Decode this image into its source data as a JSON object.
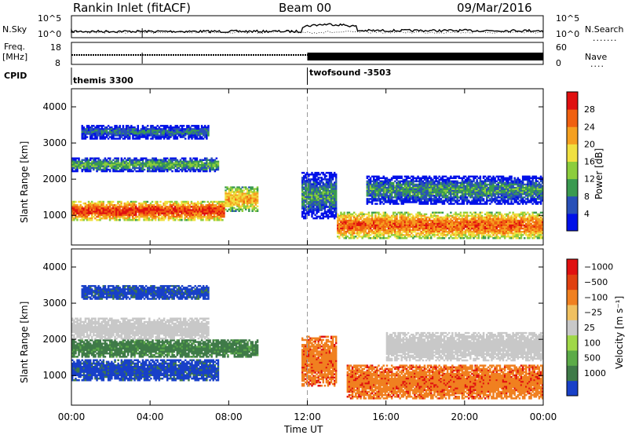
{
  "header": {
    "station": "Rankin Inlet (fitACF)",
    "beam": "Beam 00",
    "date": "09/Mar/2016"
  },
  "top_panels": {
    "nsky_label": "N.Sky",
    "nsky_ticks": [
      "10^5",
      "10^0"
    ],
    "nsearch_label": "N.Search",
    "nsearch_ticks": [
      "10^5",
      "10^0"
    ],
    "freq_label": "Freq.",
    "freq_unit": "[MHz]",
    "freq_ticks": [
      "18",
      "8"
    ],
    "nave_label": "Nave",
    "nave_ticks": [
      "60",
      "0"
    ],
    "cpid_label": "CPID",
    "cpid_segments": [
      {
        "label": "themis 3300",
        "start_hour": 0
      },
      {
        "label": "twofsound -3503",
        "start_hour": 12
      }
    ]
  },
  "chart_data": [
    {
      "type": "heatmap",
      "title": "",
      "xlabel": "",
      "ylabel": "Slant Range [km]",
      "x_ticks": [
        "00:00",
        "04:00",
        "08:00",
        "12:00",
        "16:00",
        "20:00",
        "00:00"
      ],
      "xlim_hours": [
        0,
        24
      ],
      "y_ticks": [
        "1000",
        "2000",
        "3000",
        "4000"
      ],
      "ylim": [
        180,
        4500
      ],
      "colorbar": {
        "label": "Power [dB]",
        "ticks": [
          "4",
          "8",
          "12",
          "16",
          "20",
          "24",
          "28"
        ],
        "colors": [
          "#0010e8",
          "#2850b8",
          "#3a9a50",
          "#8ccd3c",
          "#f0e040",
          "#f5a020",
          "#f06010",
          "#e01010"
        ]
      },
      "regions": [
        {
          "t0": 0,
          "t1": 7.8,
          "r0": 850,
          "r1": 1400,
          "level": 28
        },
        {
          "t0": 7.8,
          "t1": 9.5,
          "r0": 1100,
          "r1": 1800,
          "level": 22
        },
        {
          "t0": 0,
          "t1": 7.5,
          "r0": 2200,
          "r1": 2600,
          "level": 12
        },
        {
          "t0": 0.5,
          "t1": 7,
          "r0": 3100,
          "r1": 3500,
          "level": 8
        },
        {
          "t0": 11.7,
          "t1": 13.5,
          "r0": 900,
          "r1": 2200,
          "level": 10
        },
        {
          "t0": 13.5,
          "t1": 24,
          "r0": 350,
          "r1": 1100,
          "level": 26
        },
        {
          "t0": 15,
          "t1": 24,
          "r0": 1300,
          "r1": 2100,
          "level": 10
        }
      ]
    },
    {
      "type": "heatmap",
      "title": "",
      "xlabel": "Time UT",
      "ylabel": "Slant Range [km]",
      "x_ticks": [
        "00:00",
        "04:00",
        "08:00",
        "12:00",
        "16:00",
        "20:00",
        "00:00"
      ],
      "xlim_hours": [
        0,
        24
      ],
      "y_ticks": [
        "1000",
        "2000",
        "3000",
        "4000"
      ],
      "ylim": [
        180,
        4500
      ],
      "colorbar": {
        "label": "Velocity [m s⁻¹]",
        "ticks": [
          "1000",
          "500",
          "100",
          "25",
          "−25",
          "−100",
          "−500",
          "−1000"
        ],
        "colors": [
          "#1840c8",
          "#3f7a48",
          "#5cab48",
          "#a0d848",
          "#c8c8c8",
          "#f0c060",
          "#f08020",
          "#e04010",
          "#e01010"
        ]
      },
      "regions": [
        {
          "t0": 0,
          "t1": 7.5,
          "r0": 850,
          "r1": 1450,
          "level": 700
        },
        {
          "t0": 0,
          "t1": 9.5,
          "r0": 1500,
          "r1": 2000,
          "level": 150
        },
        {
          "t0": 0,
          "t1": 7,
          "r0": 2000,
          "r1": 2600,
          "level": 0
        },
        {
          "t0": 0.5,
          "t1": 7,
          "r0": 3100,
          "r1": 3500,
          "level": 700
        },
        {
          "t0": 11.7,
          "t1": 13.5,
          "r0": 700,
          "r1": 2100,
          "level": -300
        },
        {
          "t0": 14,
          "t1": 24,
          "r0": 350,
          "r1": 1300,
          "level": -300
        },
        {
          "t0": 16,
          "t1": 24,
          "r0": 1400,
          "r1": 2200,
          "level": 0
        }
      ]
    }
  ]
}
